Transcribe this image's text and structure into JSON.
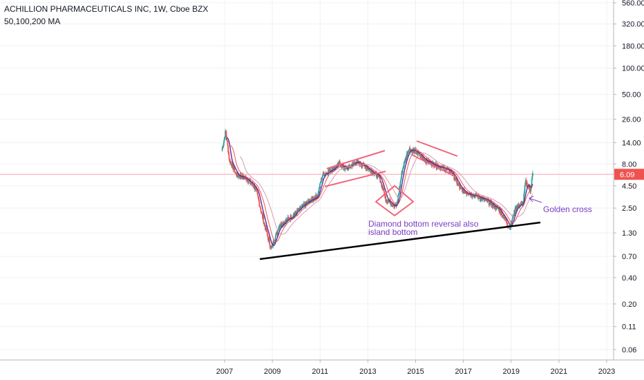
{
  "header": {
    "title": "ACHILLION PHARMACEUTICALS INC, 1W, Cboe BZX",
    "indicators": "50,100,200 MA"
  },
  "price_badge": "6.09",
  "annotations": {
    "diamond": "Diamond bottom reversal also island bottom",
    "diamond_line1": "Diamond bottom reversal also",
    "diamond_line2": "island bottom",
    "golden_cross": "Golden cross"
  },
  "colors": {
    "up": "#26a69a",
    "down": "#ef5350",
    "ma_red": "#ef5350",
    "ma_purple": "#5b2c9e",
    "ma_pink": "#d59ab0",
    "pattern": "#f2637a",
    "annotation_text": "#7a3cc2",
    "trendline": "#000000",
    "price_line": "#f7a1a8"
  },
  "chart_data": {
    "type": "candlestick",
    "title": "ACHILLION PHARMACEUTICALS INC, 1W, Cboe BZX",
    "scale": "log",
    "x_ticks": [
      "2007",
      "2009",
      "2011",
      "2013",
      "2015",
      "2017",
      "2019",
      "2021",
      "2023"
    ],
    "y_ticks": [
      "560.00",
      "320.00",
      "180.00",
      "100.00",
      "50.00",
      "26.00",
      "14.00",
      "8.00",
      "4.50",
      "2.50",
      "1.30",
      "0.70",
      "0.40",
      "0.20",
      "0.11",
      "0.06"
    ],
    "last_price": 6.09,
    "approx_close_path": [
      {
        "date": 2006.9,
        "price": 12
      },
      {
        "date": 2007.05,
        "price": 19
      },
      {
        "date": 2007.2,
        "price": 9
      },
      {
        "date": 2007.5,
        "price": 6
      },
      {
        "date": 2007.9,
        "price": 5.5
      },
      {
        "date": 2008.3,
        "price": 4.2
      },
      {
        "date": 2008.7,
        "price": 1.5
      },
      {
        "date": 2008.95,
        "price": 0.85
      },
      {
        "date": 2009.3,
        "price": 1.6
      },
      {
        "date": 2009.8,
        "price": 2
      },
      {
        "date": 2010.4,
        "price": 2.8
      },
      {
        "date": 2010.9,
        "price": 3.5
      },
      {
        "date": 2011.1,
        "price": 6
      },
      {
        "date": 2011.5,
        "price": 7
      },
      {
        "date": 2011.8,
        "price": 8
      },
      {
        "date": 2012.1,
        "price": 7
      },
      {
        "date": 2012.5,
        "price": 8.5
      },
      {
        "date": 2012.9,
        "price": 7.5
      },
      {
        "date": 2013.2,
        "price": 6.5
      },
      {
        "date": 2013.5,
        "price": 5.5
      },
      {
        "date": 2013.75,
        "price": 3.2
      },
      {
        "date": 2014.2,
        "price": 2.6
      },
      {
        "date": 2014.45,
        "price": 7
      },
      {
        "date": 2014.7,
        "price": 12
      },
      {
        "date": 2015.0,
        "price": 11
      },
      {
        "date": 2015.5,
        "price": 8.5
      },
      {
        "date": 2016.0,
        "price": 7.5
      },
      {
        "date": 2016.5,
        "price": 6.5
      },
      {
        "date": 2016.9,
        "price": 4
      },
      {
        "date": 2017.5,
        "price": 3.5
      },
      {
        "date": 2018.0,
        "price": 3
      },
      {
        "date": 2018.5,
        "price": 2.4
      },
      {
        "date": 2018.95,
        "price": 1.5
      },
      {
        "date": 2019.2,
        "price": 2.6
      },
      {
        "date": 2019.5,
        "price": 2.8
      },
      {
        "date": 2019.6,
        "price": 5
      },
      {
        "date": 2019.8,
        "price": 4
      },
      {
        "date": 2019.9,
        "price": 6.09
      }
    ],
    "moving_averages": [
      {
        "name": "MA 50"
      },
      {
        "name": "MA 100"
      },
      {
        "name": "MA 200"
      }
    ]
  }
}
